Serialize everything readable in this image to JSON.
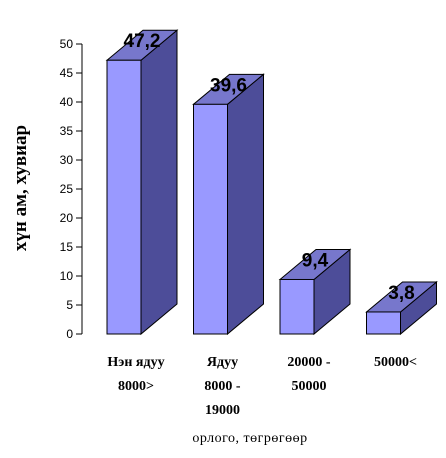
{
  "chart_data": {
    "type": "bar",
    "title": "",
    "categories": [
      [
        "Нэн ядуу",
        "8000>"
      ],
      [
        "Ядуу",
        "8000 -",
        "19000"
      ],
      [
        "20000 -",
        "50000"
      ],
      [
        "50000<"
      ]
    ],
    "values": [
      47.2,
      39.6,
      9.4,
      3.8
    ],
    "value_labels": [
      "47,2",
      "39,6",
      "9,4",
      "3,8"
    ],
    "xlabel": "орлого, төгрөгөөр",
    "ylabel": "хүн ам, хувиар",
    "ylim": [
      0,
      50
    ],
    "yticks": [
      0,
      5,
      10,
      15,
      20,
      25,
      30,
      35,
      40,
      45,
      50
    ],
    "grid": false,
    "legend": "none",
    "style": "3d",
    "colors": {
      "front": "#9999FF",
      "side": "#4D4D99",
      "top": "#7777CC",
      "stroke": "#000000"
    }
  }
}
